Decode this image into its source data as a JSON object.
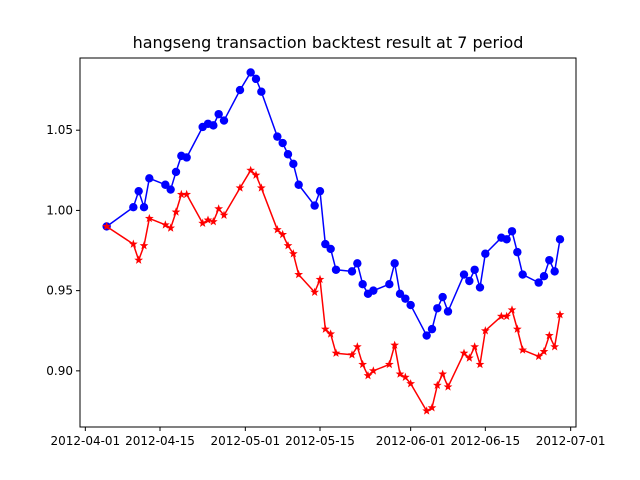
{
  "chart_data": {
    "type": "line",
    "title": "hangseng transaction backtest result at 7 period",
    "xlabel": "",
    "ylabel": "",
    "grid": false,
    "x_axis_type": "date",
    "xlim": [
      "2012-03-31",
      "2012-07-02"
    ],
    "ylim": [
      0.865,
      1.095
    ],
    "x_ticks": [
      "2012-04-01",
      "2012-04-15",
      "2012-05-01",
      "2012-05-15",
      "2012-06-01",
      "2012-06-15",
      "2012-07-01"
    ],
    "y_ticks": [
      0.9,
      0.95,
      1.0,
      1.05
    ],
    "y_tick_labels": [
      "0.90",
      "0.95",
      "1.00",
      "1.05"
    ],
    "x": [
      "2012-04-05",
      "2012-04-10",
      "2012-04-11",
      "2012-04-12",
      "2012-04-13",
      "2012-04-16",
      "2012-04-17",
      "2012-04-18",
      "2012-04-19",
      "2012-04-20",
      "2012-04-23",
      "2012-04-24",
      "2012-04-25",
      "2012-04-26",
      "2012-04-27",
      "2012-04-30",
      "2012-05-02",
      "2012-05-03",
      "2012-05-04",
      "2012-05-07",
      "2012-05-08",
      "2012-05-09",
      "2012-05-10",
      "2012-05-11",
      "2012-05-14",
      "2012-05-15",
      "2012-05-16",
      "2012-05-17",
      "2012-05-18",
      "2012-05-21",
      "2012-05-22",
      "2012-05-23",
      "2012-05-24",
      "2012-05-25",
      "2012-05-28",
      "2012-05-29",
      "2012-05-30",
      "2012-05-31",
      "2012-06-01",
      "2012-06-04",
      "2012-06-05",
      "2012-06-06",
      "2012-06-07",
      "2012-06-08",
      "2012-06-11",
      "2012-06-12",
      "2012-06-13",
      "2012-06-14",
      "2012-06-15",
      "2012-06-18",
      "2012-06-19",
      "2012-06-20",
      "2012-06-21",
      "2012-06-22",
      "2012-06-25",
      "2012-06-26",
      "2012-06-27",
      "2012-06-28",
      "2012-06-29"
    ],
    "series": [
      {
        "color": "#0000ff",
        "marker": "circle",
        "values": [
          0.99,
          1.002,
          1.012,
          1.002,
          1.02,
          1.016,
          1.013,
          1.024,
          1.034,
          1.033,
          1.052,
          1.054,
          1.053,
          1.06,
          1.056,
          1.075,
          1.086,
          1.082,
          1.074,
          1.046,
          1.042,
          1.035,
          1.029,
          1.016,
          1.003,
          1.012,
          0.979,
          0.976,
          0.963,
          0.962,
          0.967,
          0.954,
          0.948,
          0.95,
          0.954,
          0.967,
          0.948,
          0.945,
          0.941,
          0.922,
          0.926,
          0.939,
          0.946,
          0.937,
          0.96,
          0.956,
          0.963,
          0.952,
          0.973,
          0.983,
          0.982,
          0.987,
          0.974,
          0.96,
          0.955,
          0.959,
          0.969,
          0.962,
          0.982
        ]
      },
      {
        "color": "#ff0000",
        "marker": "star",
        "values": [
          0.99,
          0.979,
          0.969,
          0.978,
          0.995,
          0.991,
          0.989,
          0.999,
          1.01,
          1.01,
          0.992,
          0.994,
          0.993,
          1.001,
          0.997,
          1.014,
          1.025,
          1.022,
          1.014,
          0.988,
          0.985,
          0.978,
          0.973,
          0.96,
          0.949,
          0.957,
          0.926,
          0.923,
          0.911,
          0.91,
          0.915,
          0.904,
          0.897,
          0.9,
          0.904,
          0.916,
          0.898,
          0.896,
          0.892,
          0.875,
          0.877,
          0.891,
          0.898,
          0.89,
          0.911,
          0.908,
          0.915,
          0.904,
          0.925,
          0.934,
          0.934,
          0.938,
          0.926,
          0.913,
          0.909,
          0.912,
          0.922,
          0.915,
          0.935
        ]
      }
    ]
  }
}
